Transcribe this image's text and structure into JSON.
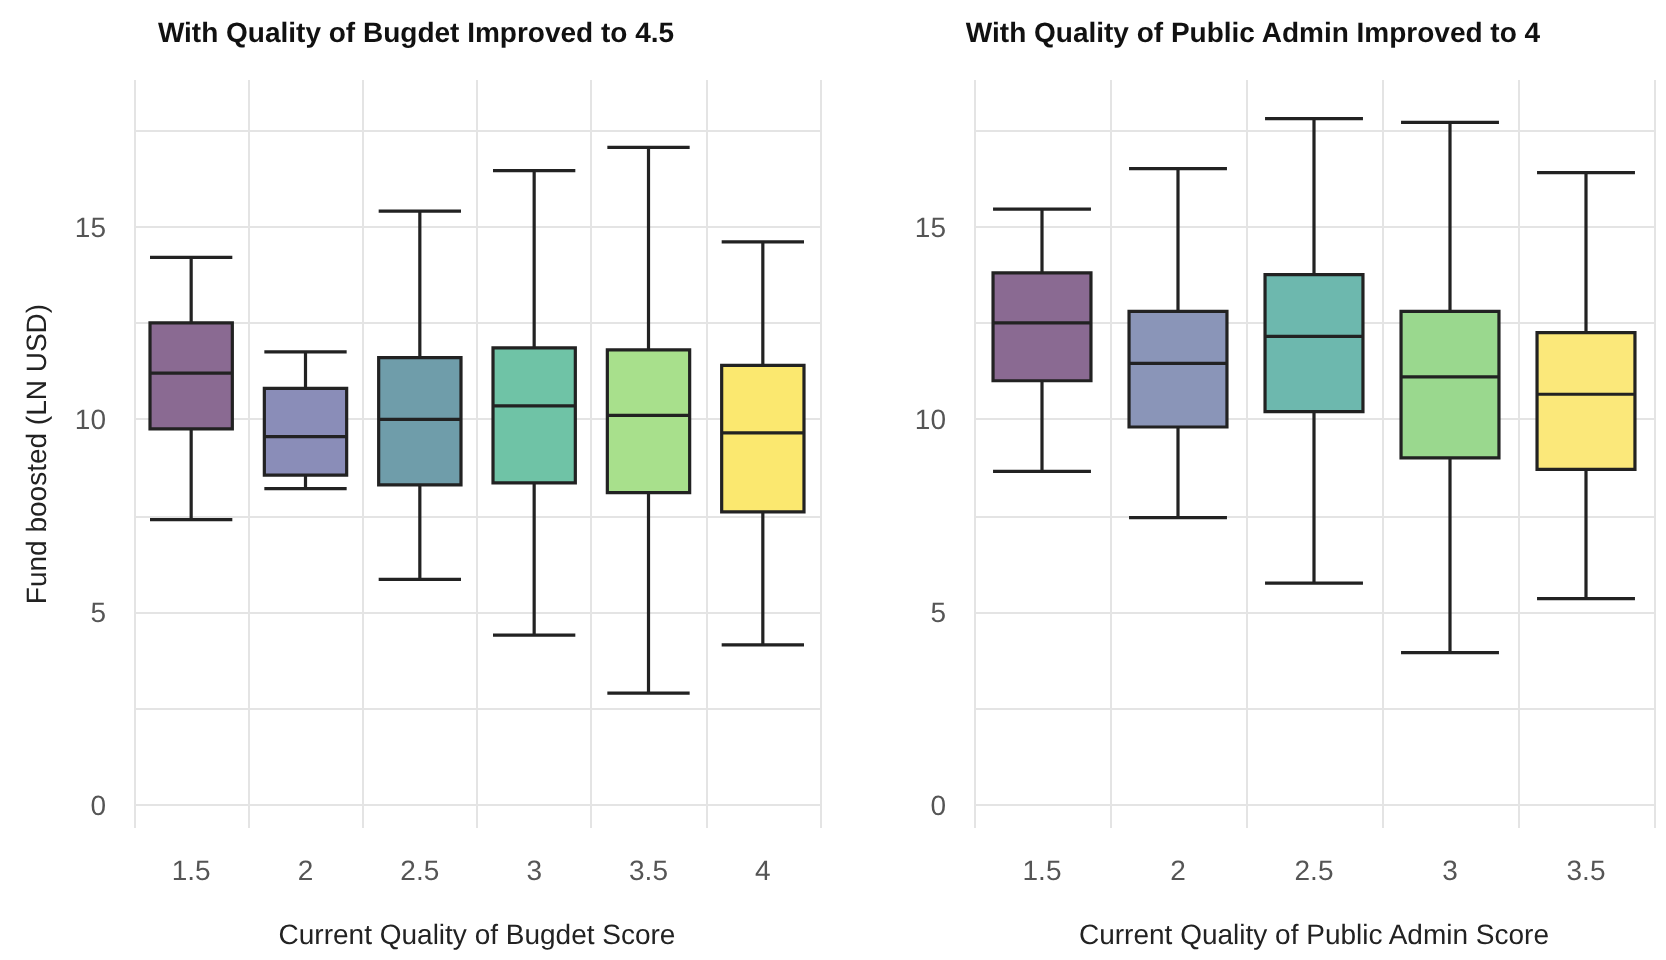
{
  "chart_data": [
    {
      "type": "box",
      "title": "With Quality of Bugdet Improved to 4.5",
      "xlabel": "Current Quality of Bugdet Score",
      "ylabel": "Fund boosted (LN USD)",
      "categories": [
        "1.5",
        "2",
        "2.5",
        "3",
        "3.5",
        "4"
      ],
      "boxes": [
        {
          "low": 7.4,
          "q1": 9.75,
          "median": 11.2,
          "q3": 12.5,
          "high": 14.2
        },
        {
          "low": 8.2,
          "q1": 8.55,
          "median": 9.55,
          "q3": 10.8,
          "high": 11.75
        },
        {
          "low": 5.85,
          "q1": 8.3,
          "median": 10.0,
          "q3": 11.6,
          "high": 15.4
        },
        {
          "low": 4.4,
          "q1": 8.35,
          "median": 10.35,
          "q3": 11.85,
          "high": 16.45
        },
        {
          "low": 2.9,
          "q1": 8.1,
          "median": 10.1,
          "q3": 11.8,
          "high": 17.05
        },
        {
          "low": 4.15,
          "q1": 7.6,
          "median": 9.65,
          "q3": 11.4,
          "high": 14.6
        }
      ],
      "colors": [
        "#8a6a92",
        "#8a8db8",
        "#6f9daa",
        "#6fc3a6",
        "#a8e08c",
        "#fbe86f"
      ],
      "ylim": [
        -0.6,
        18.8
      ],
      "yticks": [
        0,
        {
          "value": 2.5,
          "label": null
        },
        5,
        {
          "value": 7.5,
          "label": null
        },
        10,
        {
          "value": 12.5,
          "label": null
        },
        15,
        {
          "value": 17.5,
          "label": null
        }
      ],
      "grid": true
    },
    {
      "type": "box",
      "title": "With Quality of Public Admin Improved to 4",
      "xlabel": "Current Quality of Public Admin Score",
      "categories": [
        "1.5",
        "2",
        "2.5",
        "3",
        "3.5"
      ],
      "boxes": [
        {
          "low": 8.65,
          "q1": 11.0,
          "median": 12.5,
          "q3": 13.8,
          "high": 15.45
        },
        {
          "low": 7.45,
          "q1": 9.8,
          "median": 11.45,
          "q3": 12.8,
          "high": 16.5
        },
        {
          "low": 5.75,
          "q1": 10.2,
          "median": 12.15,
          "q3": 13.75,
          "high": 17.8
        },
        {
          "low": 3.95,
          "q1": 9.0,
          "median": 11.1,
          "q3": 12.8,
          "high": 17.7
        },
        {
          "low": 5.35,
          "q1": 8.7,
          "median": 10.65,
          "q3": 12.25,
          "high": 16.4
        }
      ],
      "colors": [
        "#8a6a92",
        "#8a95b8",
        "#6db8ae",
        "#9ad88e",
        "#fbe87a"
      ],
      "ylim": [
        -0.6,
        18.8
      ],
      "yticks": [
        0,
        {
          "value": 2.5,
          "label": null
        },
        5,
        {
          "value": 7.5,
          "label": null
        },
        10,
        {
          "value": 12.5,
          "label": null
        },
        15,
        {
          "value": 17.5,
          "label": null
        }
      ],
      "grid": true
    }
  ]
}
